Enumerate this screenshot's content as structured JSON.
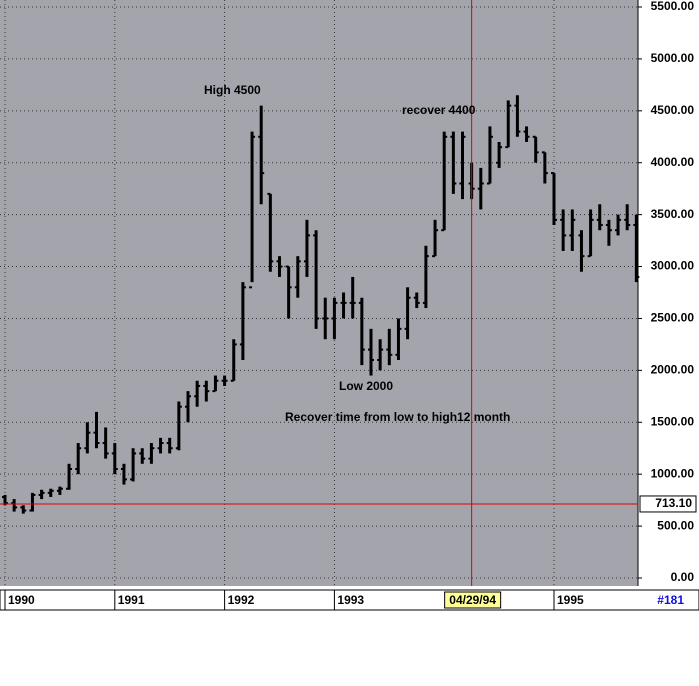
{
  "chart_data": {
    "type": "ohlc",
    "annotations": [
      "High 4500",
      "recover 4400",
      "Low 2000",
      "Recover time from low to high12 month"
    ],
    "open": [
      780,
      720,
      680,
      650,
      800,
      820,
      840,
      860,
      1050,
      1250,
      1400,
      1300,
      1200,
      1050,
      950,
      1200,
      1150,
      1250,
      1300,
      1250,
      1650,
      1750,
      1850,
      1800,
      1900,
      1900,
      2250,
      2800,
      4250,
      3700,
      3050,
      3000,
      2800,
      3050,
      3300,
      2500,
      2500,
      2650,
      2650,
      2650,
      2200,
      2100,
      2200,
      2150,
      2400,
      2700,
      2650,
      3100,
      3350,
      4250,
      3800,
      3800,
      3750,
      3800,
      4000,
      4150,
      4550,
      4300,
      4250,
      4100,
      3900,
      3450,
      3300,
      3300,
      3100,
      3450,
      3400,
      3350,
      3450,
      3400
    ],
    "high": [
      800,
      760,
      700,
      820,
      850,
      860,
      880,
      1100,
      1300,
      1500,
      1600,
      1450,
      1300,
      1100,
      1250,
      1250,
      1300,
      1350,
      1350,
      1700,
      1800,
      1900,
      1900,
      1950,
      1950,
      2300,
      2850,
      4300,
      4550,
      3700,
      3100,
      3000,
      3100,
      3450,
      3350,
      2700,
      2700,
      2750,
      2900,
      2700,
      2400,
      2300,
      2400,
      2500,
      2800,
      2750,
      3200,
      3450,
      4300,
      4300,
      4300,
      4000,
      3950,
      4350,
      4200,
      4600,
      4650,
      4350,
      4250,
      4100,
      3900,
      3550,
      3550,
      3350,
      3550,
      3600,
      3450,
      3500,
      3600,
      3500
    ],
    "low": [
      700,
      640,
      620,
      640,
      760,
      780,
      800,
      850,
      1000,
      1200,
      1250,
      1150,
      1000,
      900,
      930,
      1100,
      1100,
      1200,
      1200,
      1230,
      1500,
      1650,
      1700,
      1800,
      1850,
      1900,
      2100,
      2850,
      3600,
      2950,
      2900,
      2500,
      2700,
      2900,
      2400,
      2300,
      2300,
      2500,
      2500,
      2050,
      1950,
      2000,
      2050,
      2100,
      2300,
      2600,
      2600,
      3100,
      3350,
      3700,
      3650,
      3650,
      3550,
      3800,
      3950,
      4150,
      4250,
      4200,
      4000,
      3800,
      3400,
      3150,
      3150,
      2950,
      3100,
      3350,
      3200,
      3300,
      3350,
      2850
    ],
    "close": [
      720,
      680,
      650,
      800,
      820,
      840,
      860,
      1050,
      1250,
      1400,
      1300,
      1200,
      1050,
      950,
      1200,
      1150,
      1250,
      1300,
      1250,
      1650,
      1750,
      1850,
      1800,
      1900,
      1900,
      2250,
      2800,
      4250,
      3900,
      3050,
      3000,
      2800,
      3050,
      3300,
      2500,
      2500,
      2650,
      2650,
      2650,
      2200,
      2100,
      2200,
      2150,
      2400,
      2700,
      2650,
      3100,
      3350,
      4250,
      3800,
      4250,
      3750,
      3800,
      4250,
      4150,
      4550,
      4300,
      4250,
      4100,
      3900,
      3450,
      3300,
      3450,
      3100,
      3450,
      3400,
      3350,
      3450,
      3400,
      2900
    ],
    "color": "#000000",
    "ylim": [
      0,
      5500
    ],
    "yticks": [
      {
        "value": 0,
        "label": "0.00"
      },
      {
        "value": 500,
        "label": "500.00"
      },
      {
        "value": 1000,
        "label": "1000.00"
      },
      {
        "value": 1500,
        "label": "1500.00"
      },
      {
        "value": 2000,
        "label": "2000.00"
      },
      {
        "value": 2500,
        "label": "2500.00"
      },
      {
        "value": 3000,
        "label": "3000.00"
      },
      {
        "value": 3500,
        "label": "3500.00"
      },
      {
        "value": 4000,
        "label": "4000.00"
      },
      {
        "value": 4500,
        "label": "4500.00"
      },
      {
        "value": 5000,
        "label": "5000.00"
      },
      {
        "value": 5500,
        "label": "5500.00"
      }
    ],
    "xticks": [
      {
        "value": 0,
        "label": "1990"
      },
      {
        "value": 12,
        "label": "1991"
      },
      {
        "value": 24,
        "label": "1992"
      },
      {
        "value": 36,
        "label": "1993"
      },
      {
        "value": 60,
        "label": "1995"
      }
    ],
    "crosshair": {
      "x": 51,
      "x_label": "04/29/94",
      "y": 713.1,
      "y_label": "713.10",
      "color": "#e00000"
    },
    "bar_count_label": "#181",
    "grid": true
  }
}
